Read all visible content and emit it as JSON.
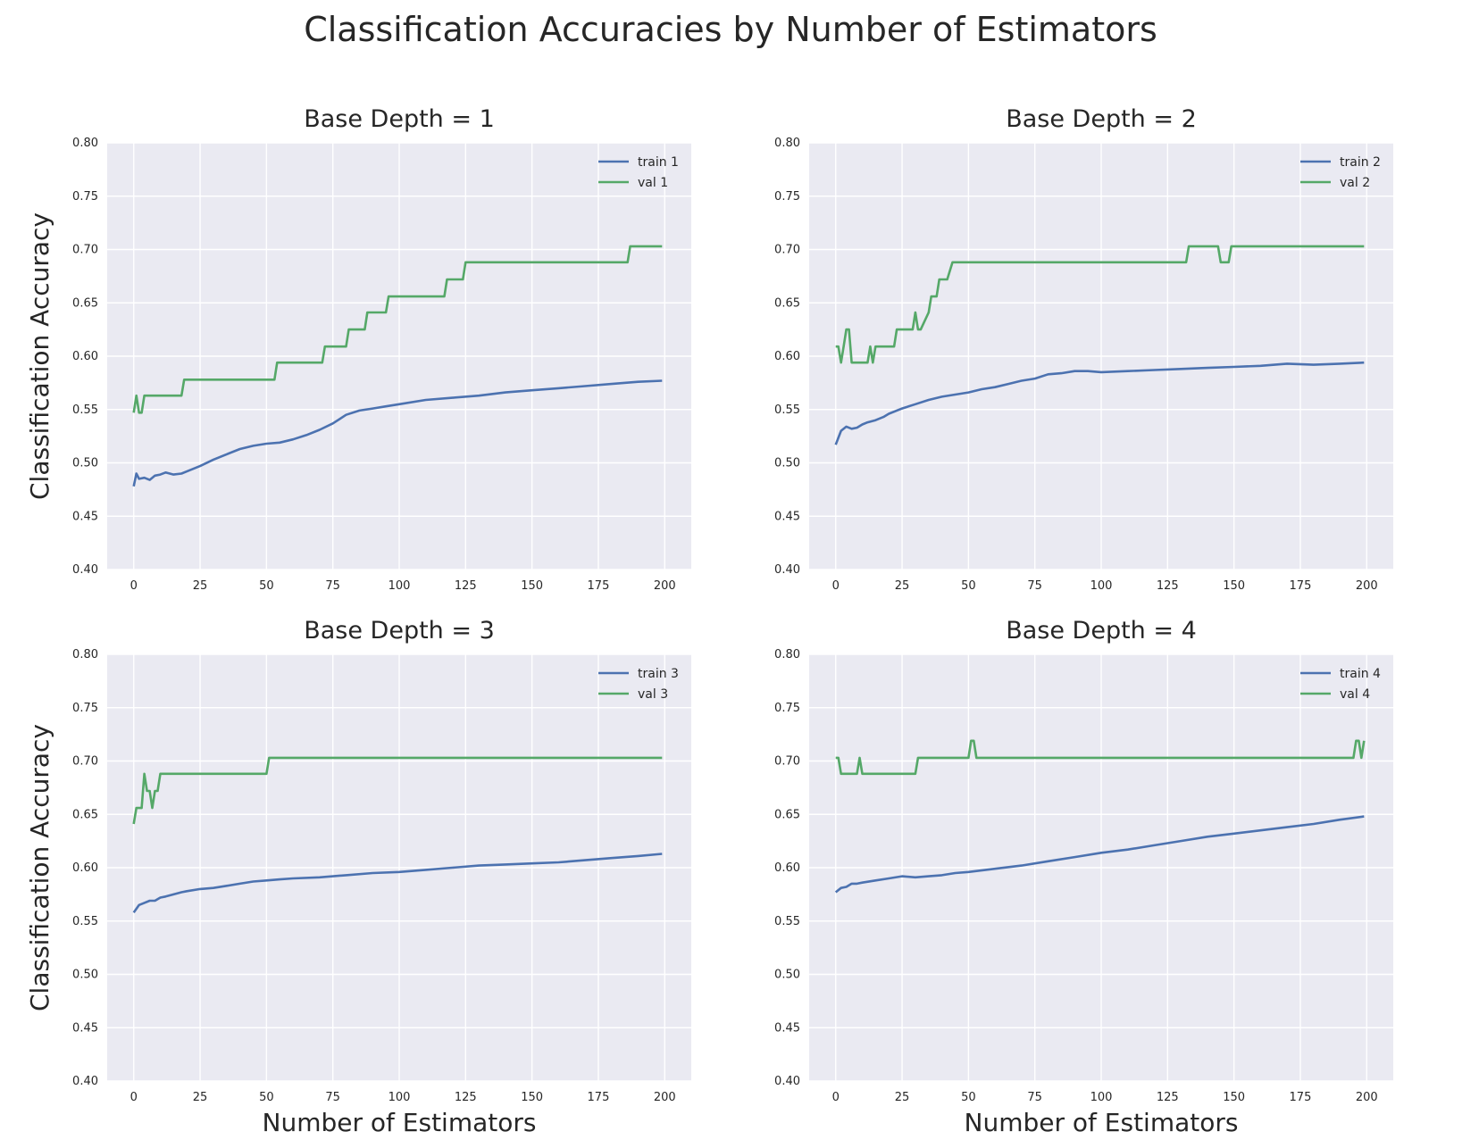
{
  "figure": {
    "suptitle": "Classification Accuracies by Number of Estimators"
  },
  "colors": {
    "train": "#4c72b0",
    "val": "#55a868",
    "axes_bg": "#eaeaf2",
    "grid": "#ffffff"
  },
  "chart_data": [
    {
      "type": "line",
      "title": "Base Depth = 1",
      "xlabel": "",
      "ylabel": "Classification Accuracy",
      "xlim": [
        -10,
        210
      ],
      "ylim": [
        0.4,
        0.8
      ],
      "xticks": [
        0,
        25,
        50,
        75,
        100,
        125,
        150,
        175,
        200
      ],
      "yticks": [
        0.4,
        0.45,
        0.5,
        0.55,
        0.6,
        0.65,
        0.7,
        0.75,
        0.8
      ],
      "grid": true,
      "legend": "top-right",
      "series": [
        {
          "name": "train 1",
          "color": "#4c72b0",
          "step": false,
          "x": [
            0,
            1,
            2,
            4,
            6,
            8,
            10,
            12,
            15,
            18,
            20,
            25,
            30,
            35,
            40,
            45,
            50,
            55,
            60,
            65,
            70,
            75,
            80,
            85,
            90,
            95,
            100,
            110,
            120,
            130,
            140,
            150,
            160,
            170,
            180,
            190,
            199
          ],
          "y": [
            0.478,
            0.49,
            0.485,
            0.486,
            0.484,
            0.488,
            0.489,
            0.491,
            0.489,
            0.49,
            0.492,
            0.497,
            0.503,
            0.508,
            0.513,
            0.516,
            0.518,
            0.519,
            0.522,
            0.526,
            0.531,
            0.537,
            0.545,
            0.549,
            0.551,
            0.553,
            0.555,
            0.559,
            0.561,
            0.563,
            0.566,
            0.568,
            0.57,
            0.572,
            0.574,
            0.576,
            0.577
          ]
        },
        {
          "name": "val 1",
          "color": "#55a868",
          "step": true,
          "x": [
            0,
            1,
            2,
            3,
            4,
            18,
            19,
            53,
            54,
            71,
            72,
            80,
            81,
            87,
            88,
            95,
            96,
            117,
            118,
            124,
            125,
            186,
            187,
            199
          ],
          "y": [
            0.547,
            0.563,
            0.547,
            0.547,
            0.563,
            0.563,
            0.578,
            0.578,
            0.594,
            0.594,
            0.609,
            0.609,
            0.625,
            0.625,
            0.641,
            0.641,
            0.656,
            0.656,
            0.672,
            0.672,
            0.688,
            0.688,
            0.703,
            0.703
          ]
        }
      ]
    },
    {
      "type": "line",
      "title": "Base Depth = 2",
      "xlabel": "",
      "ylabel": "",
      "xlim": [
        -10,
        210
      ],
      "ylim": [
        0.4,
        0.8
      ],
      "xticks": [
        0,
        25,
        50,
        75,
        100,
        125,
        150,
        175,
        200
      ],
      "yticks": [
        0.4,
        0.45,
        0.5,
        0.55,
        0.6,
        0.65,
        0.7,
        0.75,
        0.8
      ],
      "grid": true,
      "legend": "top-right",
      "series": [
        {
          "name": "train 2",
          "color": "#4c72b0",
          "step": false,
          "x": [
            0,
            2,
            4,
            6,
            8,
            10,
            12,
            15,
            18,
            20,
            25,
            30,
            35,
            40,
            45,
            50,
            55,
            60,
            65,
            70,
            75,
            80,
            85,
            90,
            95,
            100,
            110,
            120,
            130,
            140,
            150,
            160,
            170,
            180,
            190,
            199
          ],
          "y": [
            0.517,
            0.53,
            0.534,
            0.532,
            0.533,
            0.536,
            0.538,
            0.54,
            0.543,
            0.546,
            0.551,
            0.555,
            0.559,
            0.562,
            0.564,
            0.566,
            0.569,
            0.571,
            0.574,
            0.577,
            0.579,
            0.583,
            0.584,
            0.586,
            0.586,
            0.585,
            0.586,
            0.587,
            0.588,
            0.589,
            0.59,
            0.591,
            0.593,
            0.592,
            0.593,
            0.594
          ],
          "_unused": null
        },
        {
          "name": "val 2",
          "color": "#55a868",
          "step": true,
          "x": [
            0,
            1,
            2,
            3,
            4,
            5,
            6,
            12,
            13,
            14,
            15,
            22,
            23,
            29,
            30,
            31,
            32,
            35,
            36,
            38,
            39,
            41,
            42,
            44,
            45,
            132,
            133,
            144,
            145,
            148,
            149,
            199
          ],
          "y": [
            0.609,
            0.609,
            0.594,
            0.609,
            0.625,
            0.625,
            0.594,
            0.594,
            0.609,
            0.594,
            0.609,
            0.609,
            0.625,
            0.625,
            0.641,
            0.625,
            0.625,
            0.641,
            0.656,
            0.656,
            0.672,
            0.672,
            0.672,
            0.688,
            0.688,
            0.688,
            0.703,
            0.703,
            0.688,
            0.688,
            0.703,
            0.703
          ]
        }
      ]
    },
    {
      "type": "line",
      "title": "Base Depth = 3",
      "xlabel": "Number of Estimators",
      "ylabel": "Classification Accuracy",
      "xlim": [
        -10,
        210
      ],
      "ylim": [
        0.4,
        0.8
      ],
      "xticks": [
        0,
        25,
        50,
        75,
        100,
        125,
        150,
        175,
        200
      ],
      "yticks": [
        0.4,
        0.45,
        0.5,
        0.55,
        0.6,
        0.65,
        0.7,
        0.75,
        0.8
      ],
      "grid": true,
      "legend": "top-right",
      "series": [
        {
          "name": "train 3",
          "color": "#4c72b0",
          "step": false,
          "x": [
            0,
            2,
            4,
            6,
            8,
            10,
            12,
            15,
            18,
            20,
            25,
            30,
            35,
            40,
            45,
            50,
            55,
            60,
            70,
            80,
            90,
            100,
            110,
            120,
            130,
            140,
            150,
            160,
            170,
            180,
            190,
            199
          ],
          "y": [
            0.558,
            0.565,
            0.567,
            0.569,
            0.569,
            0.572,
            0.573,
            0.575,
            0.577,
            0.578,
            0.58,
            0.581,
            0.583,
            0.585,
            0.587,
            0.588,
            0.589,
            0.59,
            0.591,
            0.593,
            0.595,
            0.596,
            0.598,
            0.6,
            0.602,
            0.603,
            0.604,
            0.605,
            0.607,
            0.609,
            0.611,
            0.613
          ]
        },
        {
          "name": "val 3",
          "color": "#55a868",
          "step": true,
          "x": [
            0,
            1,
            2,
            3,
            4,
            5,
            6,
            7,
            8,
            9,
            10,
            50,
            51,
            199
          ],
          "y": [
            0.641,
            0.656,
            0.656,
            0.656,
            0.688,
            0.672,
            0.672,
            0.656,
            0.672,
            0.672,
            0.688,
            0.688,
            0.703,
            0.703
          ]
        }
      ]
    },
    {
      "type": "line",
      "title": "Base Depth = 4",
      "xlabel": "Number of Estimators",
      "ylabel": "",
      "xlim": [
        -10,
        210
      ],
      "ylim": [
        0.4,
        0.8
      ],
      "xticks": [
        0,
        25,
        50,
        75,
        100,
        125,
        150,
        175,
        200
      ],
      "yticks": [
        0.4,
        0.45,
        0.5,
        0.55,
        0.6,
        0.65,
        0.7,
        0.75,
        0.8
      ],
      "grid": true,
      "legend": "top-right",
      "series": [
        {
          "name": "train 4",
          "color": "#4c72b0",
          "step": false,
          "x": [
            0,
            2,
            4,
            6,
            8,
            10,
            15,
            20,
            25,
            30,
            35,
            40,
            45,
            50,
            60,
            70,
            80,
            90,
            100,
            110,
            120,
            130,
            140,
            150,
            160,
            170,
            180,
            190,
            199
          ],
          "y": [
            0.577,
            0.581,
            0.582,
            0.585,
            0.585,
            0.586,
            0.588,
            0.59,
            0.592,
            0.591,
            0.592,
            0.593,
            0.595,
            0.596,
            0.599,
            0.602,
            0.606,
            0.61,
            0.614,
            0.617,
            0.621,
            0.625,
            0.629,
            0.632,
            0.635,
            0.638,
            0.641,
            0.645,
            0.648
          ]
        },
        {
          "name": "val 4",
          "color": "#55a868",
          "step": true,
          "x": [
            0,
            1,
            2,
            8,
            9,
            10,
            30,
            31,
            50,
            51,
            52,
            53,
            195,
            196,
            197,
            198,
            199
          ],
          "y": [
            0.703,
            0.703,
            0.688,
            0.688,
            0.703,
            0.688,
            0.688,
            0.703,
            0.703,
            0.719,
            0.719,
            0.703,
            0.703,
            0.719,
            0.719,
            0.703,
            0.719
          ]
        }
      ]
    }
  ]
}
